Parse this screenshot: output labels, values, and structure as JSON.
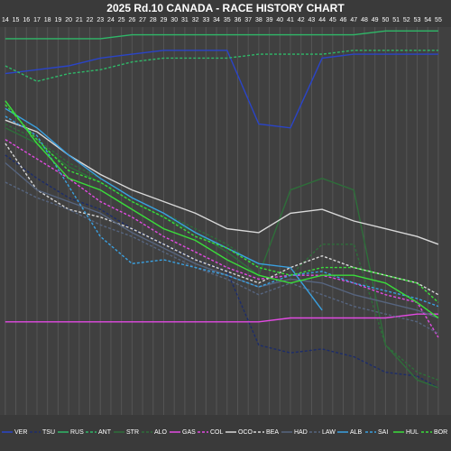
{
  "chart_data": {
    "type": "line",
    "title": "2025 Rd.10 CANADA - RACE HISTORY CHART",
    "x": [
      14,
      17,
      20,
      23,
      26,
      29,
      32,
      35,
      38,
      41,
      44,
      47,
      50,
      53,
      55
    ],
    "xlim": [
      13.5,
      56.2
    ],
    "xticks": [
      14,
      15,
      16,
      17,
      18,
      19,
      20,
      21,
      22,
      23,
      24,
      25,
      26,
      27,
      28,
      29,
      30,
      31,
      32,
      33,
      34,
      35,
      36,
      37,
      38,
      39,
      40,
      41,
      42,
      43,
      44,
      45,
      46,
      47,
      48,
      49,
      50,
      51,
      52,
      53,
      54,
      55
    ],
    "ylim": [
      0,
      100
    ],
    "y_inverted": true,
    "grid": true,
    "series": [
      {
        "name": "VER",
        "color": "#2a44c8",
        "dashed": false,
        "values": [
          12,
          11,
          10,
          8,
          7,
          6,
          6,
          6,
          25,
          26,
          8,
          7,
          7,
          7,
          7
        ]
      },
      {
        "name": "TSU",
        "color": "#1c2c6a",
        "dashed": true,
        "values": [
          33,
          39,
          44,
          47,
          52,
          56,
          60,
          63,
          82,
          84,
          83,
          85,
          89,
          90,
          93
        ]
      },
      {
        "name": "RUS",
        "color": "#2fb868",
        "dashed": false,
        "values": [
          3,
          3,
          3,
          3,
          2,
          2,
          2,
          2,
          2,
          2,
          2,
          2,
          1,
          1,
          1
        ]
      },
      {
        "name": "ANT",
        "color": "#2fb868",
        "dashed": true,
        "values": [
          10,
          14,
          12,
          11,
          9,
          8,
          8,
          8,
          7,
          7,
          7,
          6,
          6,
          6,
          6
        ]
      },
      {
        "name": "STR",
        "color": "#2e6e3a",
        "dashed": false,
        "values": [
          26,
          30,
          36,
          40,
          45,
          49,
          53,
          58,
          64,
          42,
          39,
          42,
          82,
          91,
          93
        ]
      },
      {
        "name": "ALO",
        "color": "#2e6e3a",
        "dashed": true,
        "values": [
          25,
          29,
          35,
          39,
          44,
          48,
          52,
          56,
          62,
          64,
          56,
          56,
          82,
          89,
          91
        ]
      },
      {
        "name": "GAS",
        "color": "#e24ae2",
        "dashed": false,
        "values": [
          76,
          76,
          76,
          76,
          76,
          76,
          76,
          76,
          76,
          75,
          75,
          75,
          75,
          74,
          74
        ]
      },
      {
        "name": "COL",
        "color": "#e24ae2",
        "dashed": true,
        "values": [
          29,
          34,
          39,
          45,
          49,
          54,
          58,
          62,
          65,
          64,
          64,
          66,
          69,
          71,
          80
        ]
      },
      {
        "name": "OCO",
        "color": "#d8d8d8",
        "dashed": false,
        "values": [
          24,
          27,
          33,
          38,
          42,
          45,
          48,
          52,
          53,
          48,
          47,
          50,
          52,
          54,
          56
        ]
      },
      {
        "name": "BEA",
        "color": "#d8d8d8",
        "dashed": true,
        "values": [
          30,
          42,
          47,
          49,
          52,
          56,
          60,
          63,
          66,
          62,
          59,
          62,
          64,
          66,
          69
        ]
      },
      {
        "name": "HAD",
        "color": "#56647e",
        "dashed": false,
        "values": [
          35,
          42,
          45,
          48,
          53,
          57,
          61,
          64,
          67,
          65,
          66,
          69,
          71,
          73,
          75
        ]
      },
      {
        "name": "LAW",
        "color": "#56647e",
        "dashed": true,
        "values": [
          40,
          44,
          47,
          51,
          54,
          58,
          62,
          65,
          69,
          66,
          69,
          72,
          74,
          76,
          79
        ]
      },
      {
        "name": "ALB",
        "color": "#3aa0e0",
        "dashed": false,
        "values": [
          21,
          26,
          33,
          39,
          44,
          48,
          53,
          57,
          61,
          62,
          73,
          null,
          null,
          null,
          null
        ]
      },
      {
        "name": "SAI",
        "color": "#3aa0e0",
        "dashed": true,
        "values": [
          23,
          28,
          41,
          54,
          61,
          60,
          62,
          64,
          67,
          64,
          63,
          66,
          68,
          70,
          72
        ]
      },
      {
        "name": "HUL",
        "color": "#3adc3a",
        "dashed": false,
        "values": [
          19,
          30,
          39,
          42,
          47,
          52,
          55,
          60,
          64,
          66,
          64,
          64,
          66,
          71,
          75
        ]
      },
      {
        "name": "BOR",
        "color": "#3adc3a",
        "dashed": true,
        "values": [
          20,
          29,
          37,
          40,
          45,
          49,
          54,
          57,
          62,
          64,
          62,
          62,
          64,
          66,
          71
        ]
      }
    ]
  }
}
